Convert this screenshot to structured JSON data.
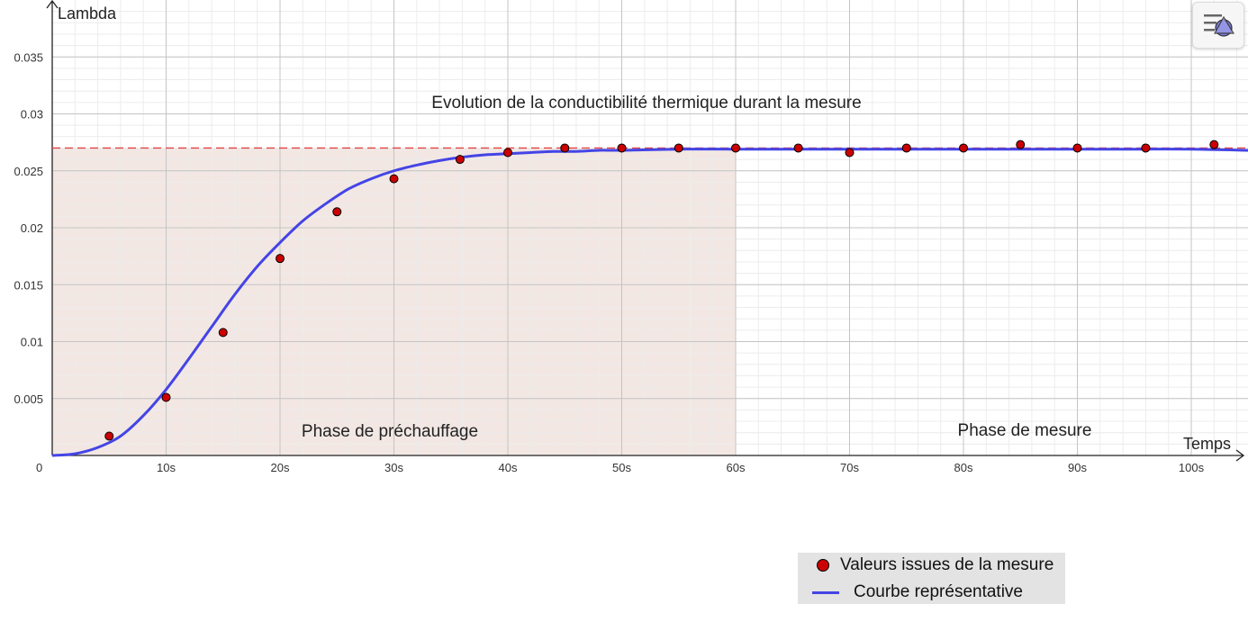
{
  "chart_data": {
    "type": "scatter",
    "title": "Evolution de la conductibilité thermique durant la mesure",
    "xlabel": "Temps",
    "ylabel": "Lambda",
    "xlim": [
      0,
      105
    ],
    "ylim": [
      0,
      0.04
    ],
    "x_ticks": [
      10,
      20,
      30,
      40,
      50,
      60,
      70,
      80,
      90,
      100
    ],
    "x_tick_labels": [
      "10s",
      "20s",
      "30s",
      "40s",
      "50s",
      "60s",
      "70s",
      "80s",
      "90s",
      "100s"
    ],
    "y_ticks": [
      0.005,
      0.01,
      0.015,
      0.02,
      0.025,
      0.03,
      0.035
    ],
    "y_tick_labels": [
      "0.005",
      "0.01",
      "0.015",
      "0.02",
      "0.025",
      "0.03",
      "0.035"
    ],
    "origin_label": "0",
    "grid": true,
    "series": [
      {
        "name": "Valeurs issues de la mesure",
        "kind": "points",
        "color": "#cc0000",
        "x": [
          5,
          10,
          15,
          20,
          25,
          30,
          35.8,
          40,
          45,
          50,
          55,
          60,
          65.5,
          70,
          75,
          80,
          85,
          90,
          96,
          102
        ],
        "y": [
          0.0017,
          0.0051,
          0.0108,
          0.0173,
          0.0214,
          0.0243,
          0.026,
          0.0266,
          0.027,
          0.027,
          0.027,
          0.027,
          0.027,
          0.0266,
          0.027,
          0.027,
          0.0273,
          0.027,
          0.027,
          0.0273
        ]
      },
      {
        "name": "Courbe représentative",
        "kind": "line",
        "color": "#4444e6",
        "x": [
          0,
          2,
          4,
          6,
          8,
          10,
          12,
          14,
          16,
          18,
          20,
          22,
          24,
          26,
          28,
          30,
          32,
          34,
          36,
          38,
          40,
          42,
          44,
          46,
          48,
          50,
          55,
          60,
          65,
          70,
          75,
          80,
          85,
          90,
          95,
          100,
          105
        ],
        "y": [
          0,
          0.00015,
          0.0007,
          0.0017,
          0.0035,
          0.0058,
          0.0085,
          0.0113,
          0.0141,
          0.0166,
          0.0187,
          0.0206,
          0.0221,
          0.0234,
          0.0243,
          0.025,
          0.0255,
          0.0259,
          0.0262,
          0.0264,
          0.0265,
          0.0266,
          0.0267,
          0.0267,
          0.0268,
          0.0268,
          0.0269,
          0.0269,
          0.0269,
          0.0269,
          0.0269,
          0.0269,
          0.0269,
          0.0269,
          0.0269,
          0.0269,
          0.0268
        ]
      }
    ],
    "reference_line": {
      "y": 0.027,
      "style": "dashed",
      "color": "#e04444"
    },
    "shaded_region": {
      "x": [
        0,
        60
      ],
      "y": [
        0,
        0.027
      ],
      "color": "#e8d4cc"
    },
    "annotations": [
      {
        "text": "Phase de préchauffage",
        "x": 30.1,
        "y": 0.0021
      },
      {
        "text": "Phase de mesure",
        "x": 85.5,
        "y": 0.0022
      }
    ],
    "legend": {
      "placement": "bottom-right",
      "items": [
        "Valeurs issues de la mesure",
        "Courbe représentative"
      ]
    }
  },
  "ui": {
    "graphics_menu_icon": "graphics-settings-icon"
  }
}
